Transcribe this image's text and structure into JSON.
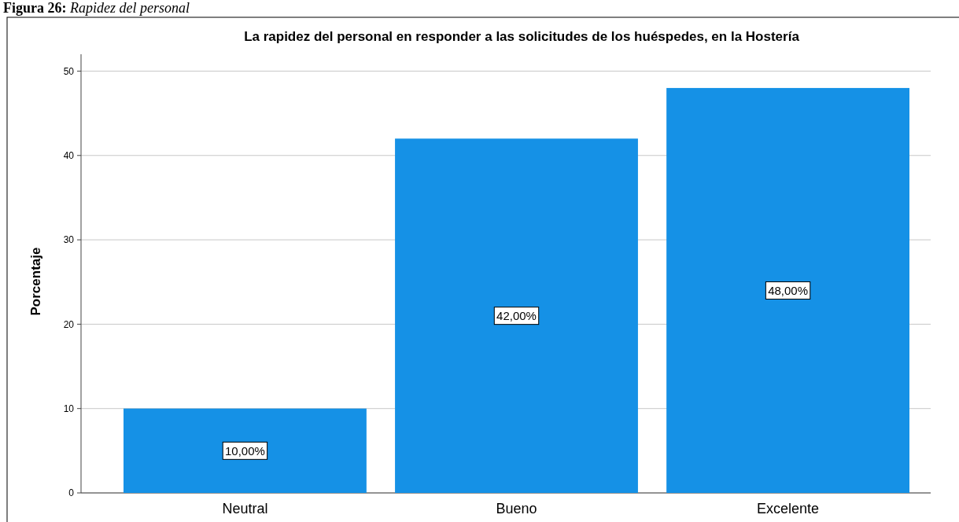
{
  "chart_data": {
    "type": "bar",
    "title": "La rapidez del personal en responder a las solicitudes de los huéspedes, en la Hostería",
    "annotations": [
      "Figura 26: Rapidez del personal"
    ],
    "ylabel": "Porcentaje",
    "categories": [
      "Neutral",
      "Bueno",
      "Excelente"
    ],
    "values": [
      10,
      42,
      48
    ],
    "color": "#1591e6",
    "value_labels": [
      "10,00%",
      "42,00%",
      "48,00%"
    ],
    "ylim": [
      0,
      52
    ],
    "yticks": [
      0,
      10,
      20,
      30,
      40,
      50
    ],
    "grid": "y"
  }
}
